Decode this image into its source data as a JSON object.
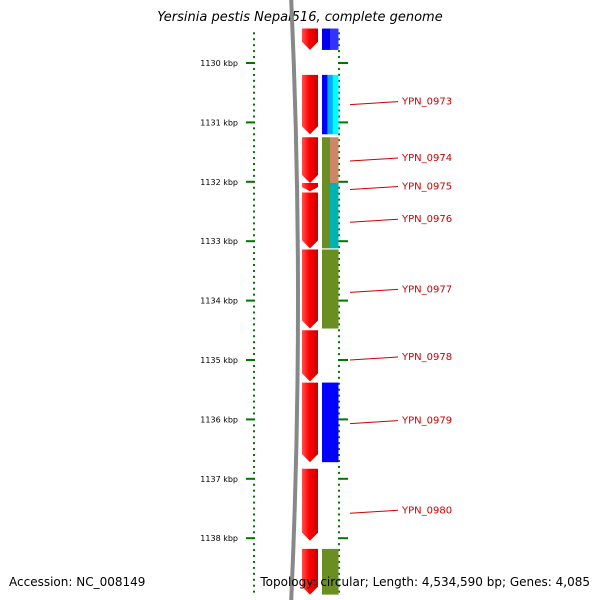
{
  "title": "Yersinia pestis Nepal516, complete genome",
  "footer": {
    "accession": "Accession: NC_008149",
    "topology": "Topology: circular",
    "length": "Length: 4,534,590 bp",
    "genes": "Genes: 4,085"
  },
  "colors": {
    "backbone": "#888888",
    "ticks": "#007700",
    "forward_strand": "#ff0000",
    "label_line": "#cc0000",
    "label_text": "#cc0000"
  },
  "chart_data": {
    "type": "genome_map_linear_segment",
    "axis": {
      "unit": "kbp",
      "range_kbp": [
        1129.5,
        1138.9
      ],
      "major_ticks_kbp": [
        1130,
        1131,
        1132,
        1133,
        1134,
        1135,
        1136,
        1137,
        1138
      ],
      "major_tick_labels": [
        "1130 kbp",
        "1131 kbp",
        "1132 kbp",
        "1133 kbp",
        "1134 kbp",
        "1135 kbp",
        "1136 kbp",
        "1137 kbp",
        "1138 kbp"
      ],
      "minor_tick_step_kbp": 0.1
    },
    "forward_genes": [
      {
        "start_kbp": 1129.42,
        "end_kbp": 1129.78
      },
      {
        "start_kbp": 1130.2,
        "end_kbp": 1131.2
      },
      {
        "start_kbp": 1131.25,
        "end_kbp": 1132.02
      },
      {
        "start_kbp": 1132.02,
        "end_kbp": 1132.16
      },
      {
        "start_kbp": 1132.18,
        "end_kbp": 1133.12
      },
      {
        "start_kbp": 1133.14,
        "end_kbp": 1134.47
      },
      {
        "start_kbp": 1134.5,
        "end_kbp": 1135.36
      },
      {
        "start_kbp": 1135.38,
        "end_kbp": 1136.72
      },
      {
        "start_kbp": 1136.83,
        "end_kbp": 1138.04
      },
      {
        "start_kbp": 1138.18,
        "end_kbp": 1138.95
      }
    ],
    "cog_genes": [
      {
        "start_kbp": 1129.42,
        "end_kbp": 1129.78,
        "colors": [
          "#0000ee",
          "#3333ff"
        ]
      },
      {
        "start_kbp": 1130.2,
        "end_kbp": 1131.2,
        "colors": [
          "#0000ff",
          "#00aaff",
          "#00ffff"
        ]
      },
      {
        "start_kbp": 1131.25,
        "end_kbp": 1132.02,
        "colors": [
          "#6b8e23",
          "#cc8866"
        ]
      },
      {
        "start_kbp": 1132.02,
        "end_kbp": 1133.12,
        "colors": [
          "#6b8e23",
          "#00b3b3"
        ]
      },
      {
        "start_kbp": 1133.14,
        "end_kbp": 1134.47,
        "colors": [
          "#6b8e23"
        ]
      },
      {
        "start_kbp": 1135.38,
        "end_kbp": 1136.72,
        "colors": [
          "#0000ff"
        ]
      },
      {
        "start_kbp": 1138.18,
        "end_kbp": 1138.95,
        "colors": [
          "#6b8e23"
        ]
      }
    ],
    "gene_labels": [
      {
        "name": "YPN_0973",
        "pos_kbp": 1130.65
      },
      {
        "name": "YPN_0974",
        "pos_kbp": 1131.6
      },
      {
        "name": "YPN_0975",
        "pos_kbp": 1132.08
      },
      {
        "name": "YPN_0976",
        "pos_kbp": 1132.63
      },
      {
        "name": "YPN_0977",
        "pos_kbp": 1133.81
      },
      {
        "name": "YPN_0978",
        "pos_kbp": 1134.95
      },
      {
        "name": "YPN_0979",
        "pos_kbp": 1136.02
      },
      {
        "name": "YPN_0980",
        "pos_kbp": 1137.53
      }
    ]
  }
}
